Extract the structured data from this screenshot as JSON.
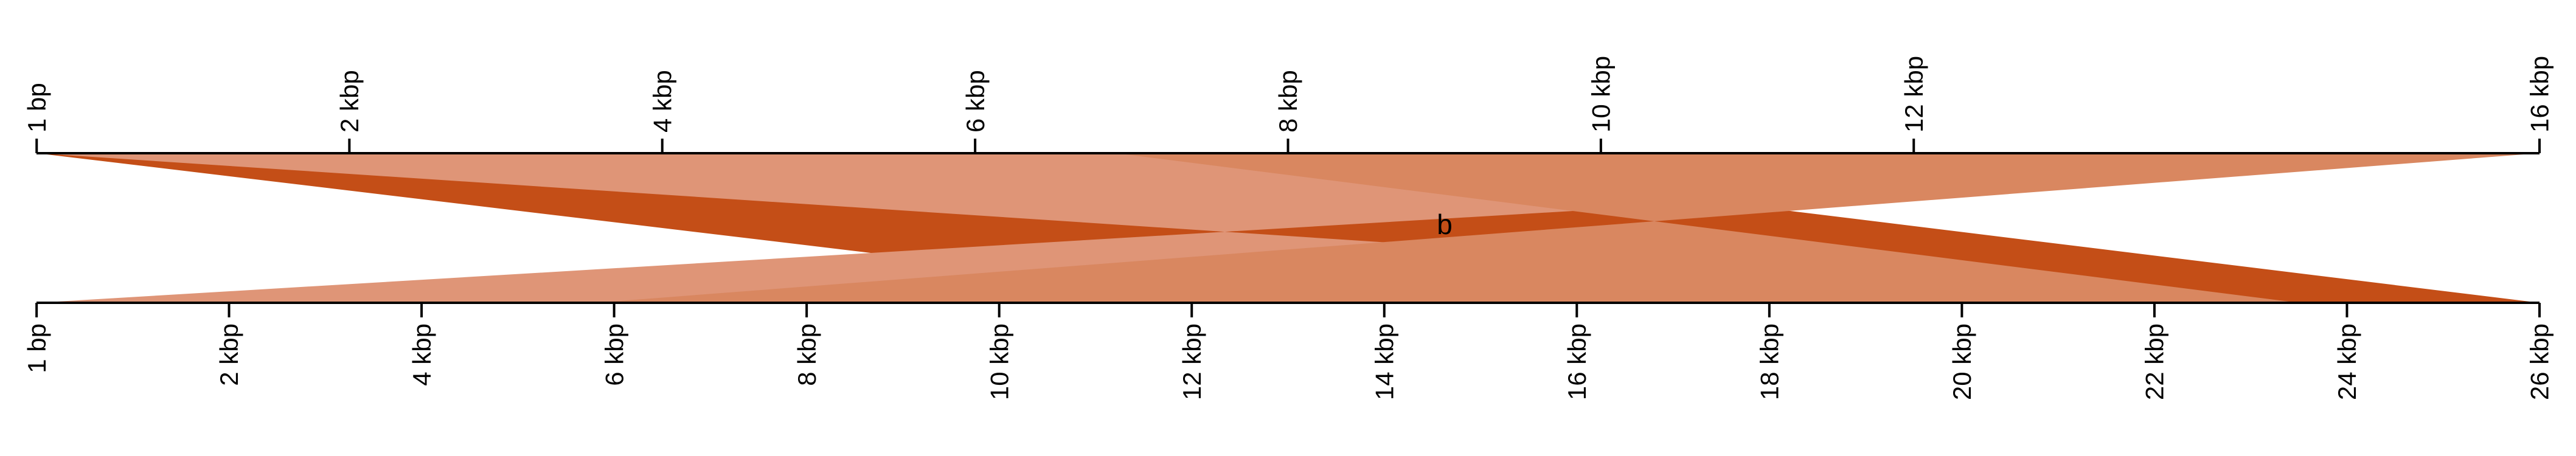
{
  "top_axis": {
    "max_bp": 16000,
    "ticks": [
      {
        "value": 1,
        "label": "1 bp"
      },
      {
        "value": 2000,
        "label": "2 kbp"
      },
      {
        "value": 4000,
        "label": "4 kbp"
      },
      {
        "value": 6000,
        "label": "6 kbp"
      },
      {
        "value": 8000,
        "label": "8 kbp"
      },
      {
        "value": 10000,
        "label": "10 kbp"
      },
      {
        "value": 12000,
        "label": "12 kbp"
      },
      {
        "value": 16000,
        "label": "16 kbp"
      }
    ]
  },
  "bottom_axis": {
    "max_bp": 26000,
    "ticks": [
      {
        "value": 1,
        "label": "1 bp"
      },
      {
        "value": 2000,
        "label": "2 kbp"
      },
      {
        "value": 4000,
        "label": "4 kbp"
      },
      {
        "value": 6000,
        "label": "6 kbp"
      },
      {
        "value": 8000,
        "label": "8 kbp"
      },
      {
        "value": 10000,
        "label": "10 kbp"
      },
      {
        "value": 12000,
        "label": "12 kbp"
      },
      {
        "value": 14000,
        "label": "14 kbp"
      },
      {
        "value": 16000,
        "label": "16 kbp"
      },
      {
        "value": 18000,
        "label": "18 kbp"
      },
      {
        "value": 20000,
        "label": "20 kbp"
      },
      {
        "value": 22000,
        "label": "22 kbp"
      },
      {
        "value": 24000,
        "label": "24 kbp"
      },
      {
        "value": 26000,
        "label": "26 kbp"
      }
    ]
  },
  "alignments": [
    {
      "name": "alignment-dark-1",
      "color": "#c44e17",
      "top": [
        1,
        8200
      ],
      "bottom": [
        13000,
        26000
      ],
      "inverted": false
    },
    {
      "name": "alignment-light-1",
      "color": "#df9577",
      "top": [
        1,
        16000
      ],
      "bottom": [
        1,
        23500
      ],
      "inverted": true
    },
    {
      "name": "alignment-mid-1",
      "color": "#d98760",
      "top": [
        6900,
        16000
      ],
      "bottom": [
        5800,
        23500
      ],
      "inverted": true
    }
  ],
  "center_label": "b",
  "colors": {
    "dark_orange": "#c44e17",
    "mid_orange": "#d98760",
    "light_orange": "#df9577",
    "axis": "#000000"
  }
}
